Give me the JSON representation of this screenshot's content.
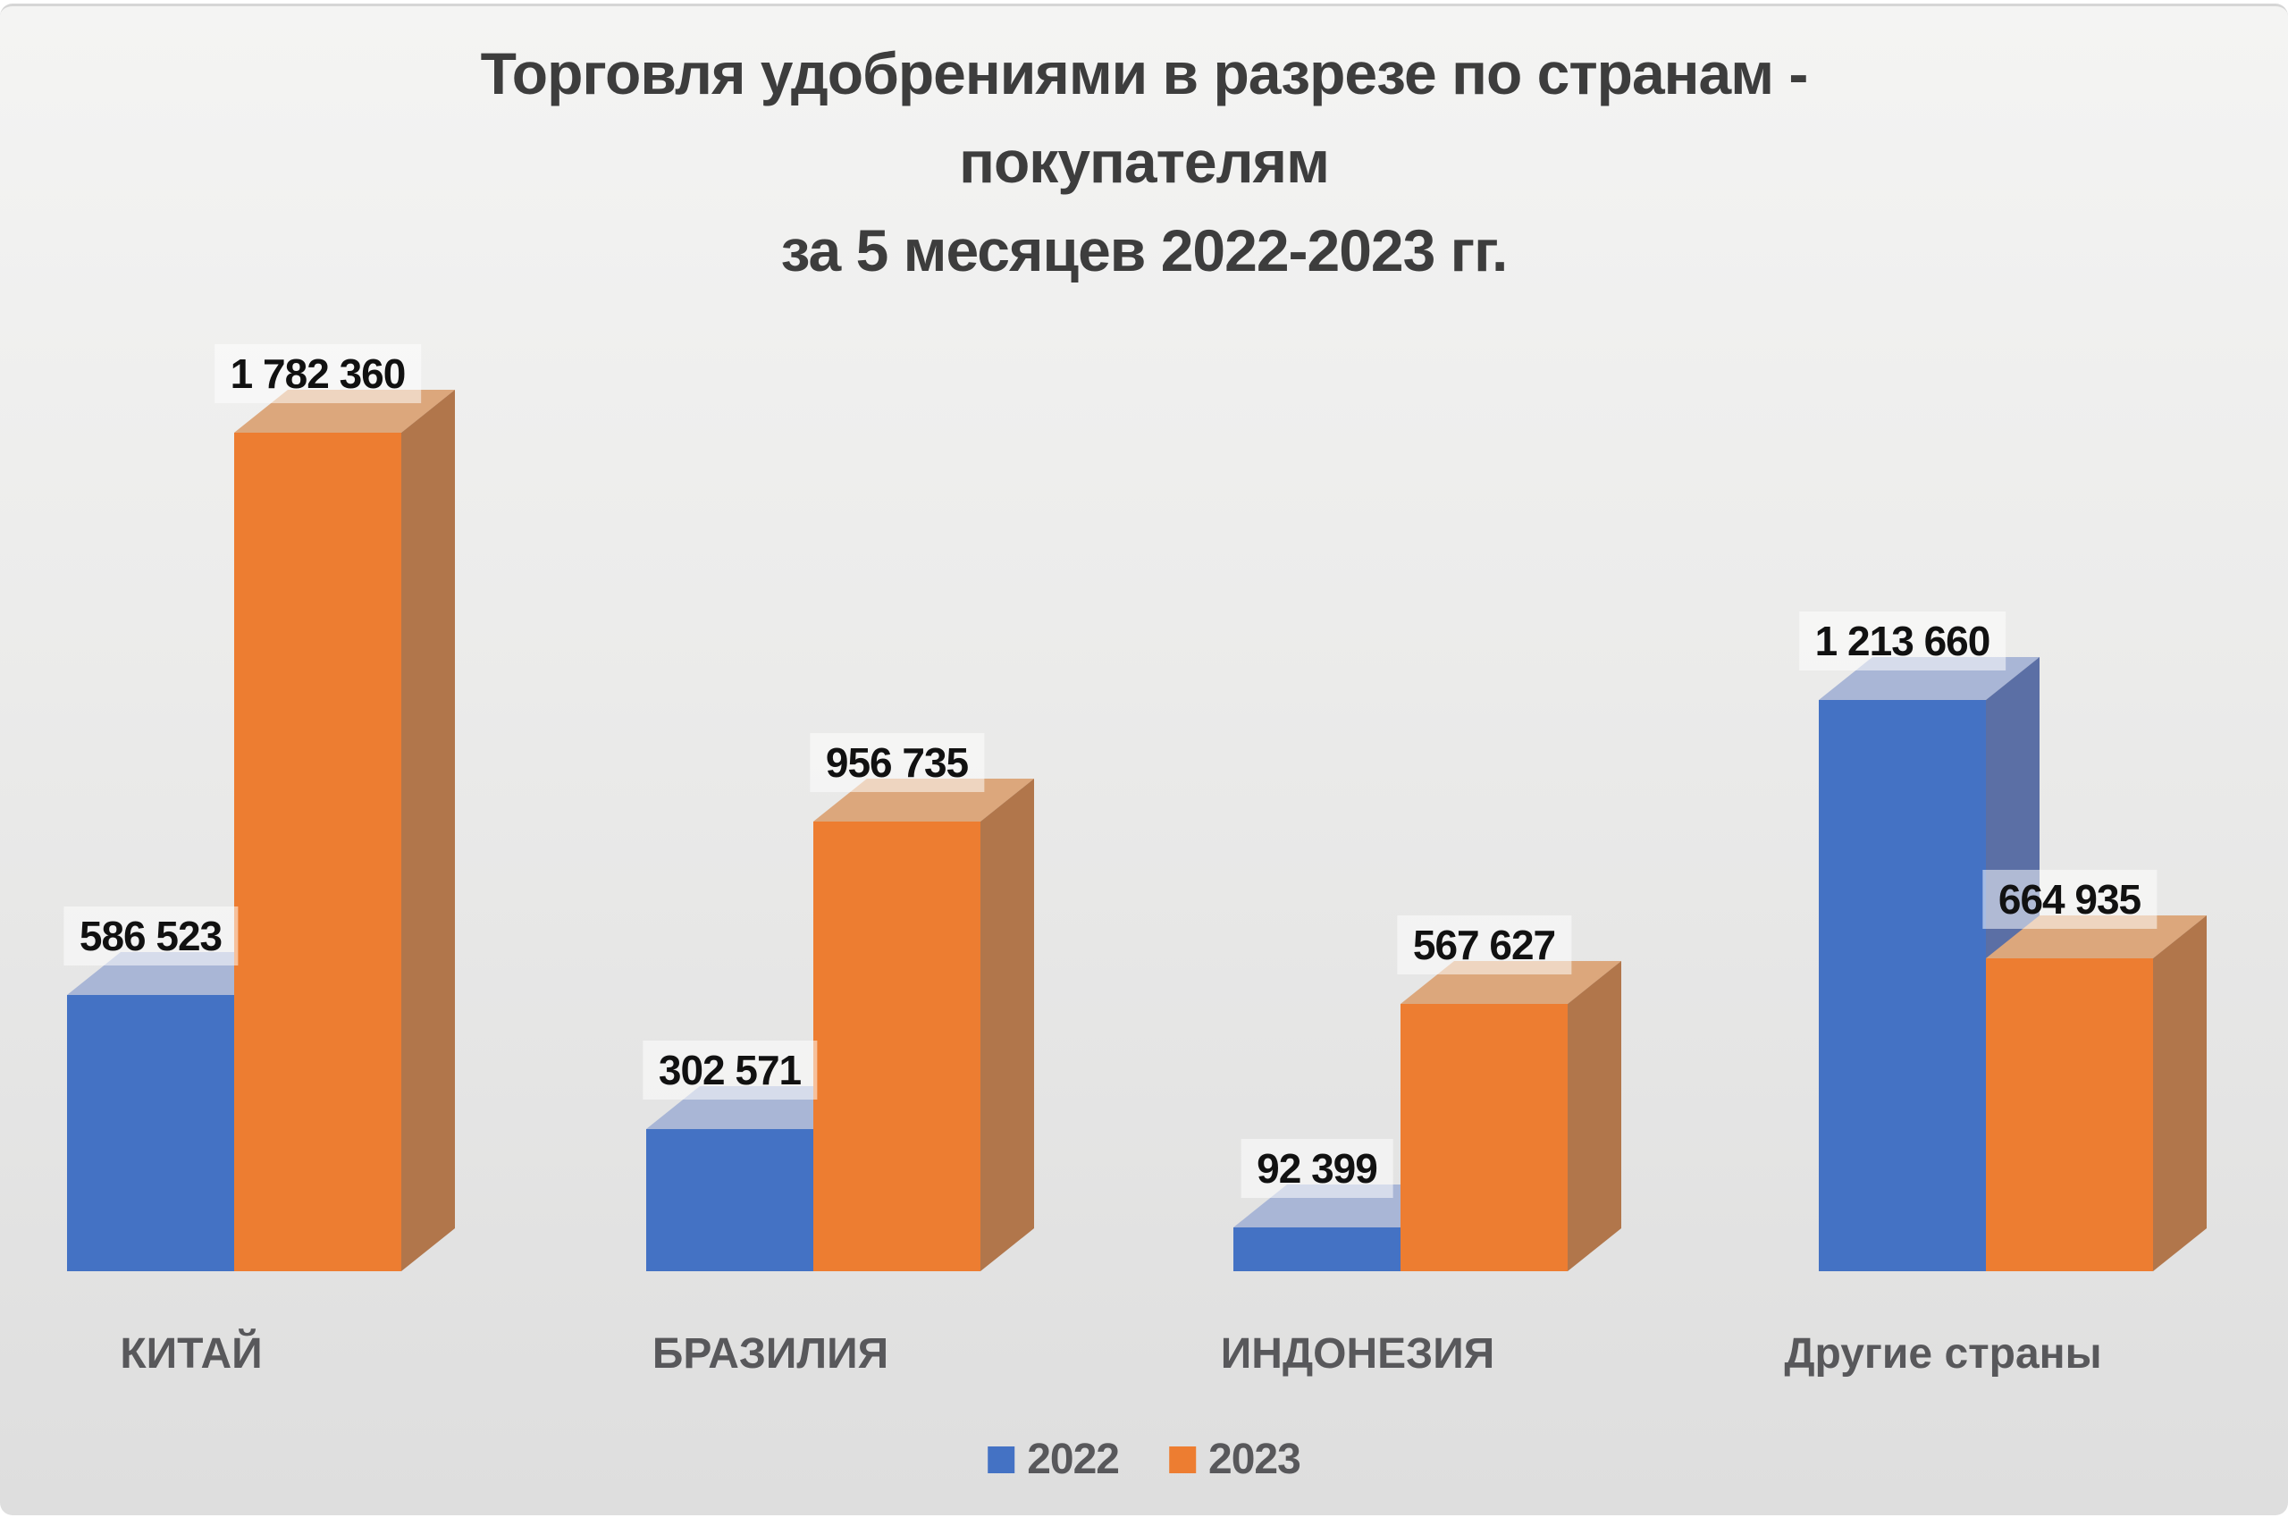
{
  "title": {
    "line1": "Торговля удобрениями в разрезе по странам -",
    "line2": "покупателям",
    "line3": "за 5 месяцев 2022-2023 гг."
  },
  "legend": [
    {
      "label": "2022",
      "color": "#4472C4"
    },
    {
      "label": "2023",
      "color": "#ED7D31"
    }
  ],
  "colors": {
    "page_bg": "#ffffff",
    "slide_bg_top": "#f4f4f3",
    "slide_bg_bottom": "#dedede",
    "slide_edge": "#d6d6d6",
    "title_text": "#3d3d3d",
    "category_text": "#58585b",
    "value_text": "#111111",
    "value_label_bg": "rgba(255,255,255,0.52)",
    "legend_text": "#58585b"
  },
  "chart_data": {
    "type": "bar",
    "style": "3d-clustered",
    "title": "Торговля удобрениями в разрезе по странам - покупателям за 5 месяцев 2022-2023 гг.",
    "categories": [
      "КИТАЙ",
      "БРАЗИЛИЯ",
      "ИНДОНЕЗИЯ",
      "Другие страны"
    ],
    "series": [
      {
        "name": "2022",
        "values": [
          586523,
          302571,
          92399,
          1213660
        ],
        "labels": [
          "586 523",
          "302 571",
          "92 399",
          "1 213 660"
        ],
        "color": {
          "front": "#4472C4",
          "side": "#5b6fa5",
          "top": "#a9b6d6"
        }
      },
      {
        "name": "2023",
        "values": [
          1782360,
          956735,
          567627,
          664935
        ],
        "labels": [
          "1 782 360",
          "956 735",
          "567 627",
          "664 935"
        ],
        "color": {
          "front": "#ED7D31",
          "side": "#b1764b",
          "top": "#dca77c"
        }
      }
    ],
    "xlabel": "",
    "ylabel": "",
    "ylim": [
      0,
      1800000
    ],
    "grid": false,
    "axes_visible": false,
    "data_labels": true,
    "legend_position": "bottom"
  }
}
